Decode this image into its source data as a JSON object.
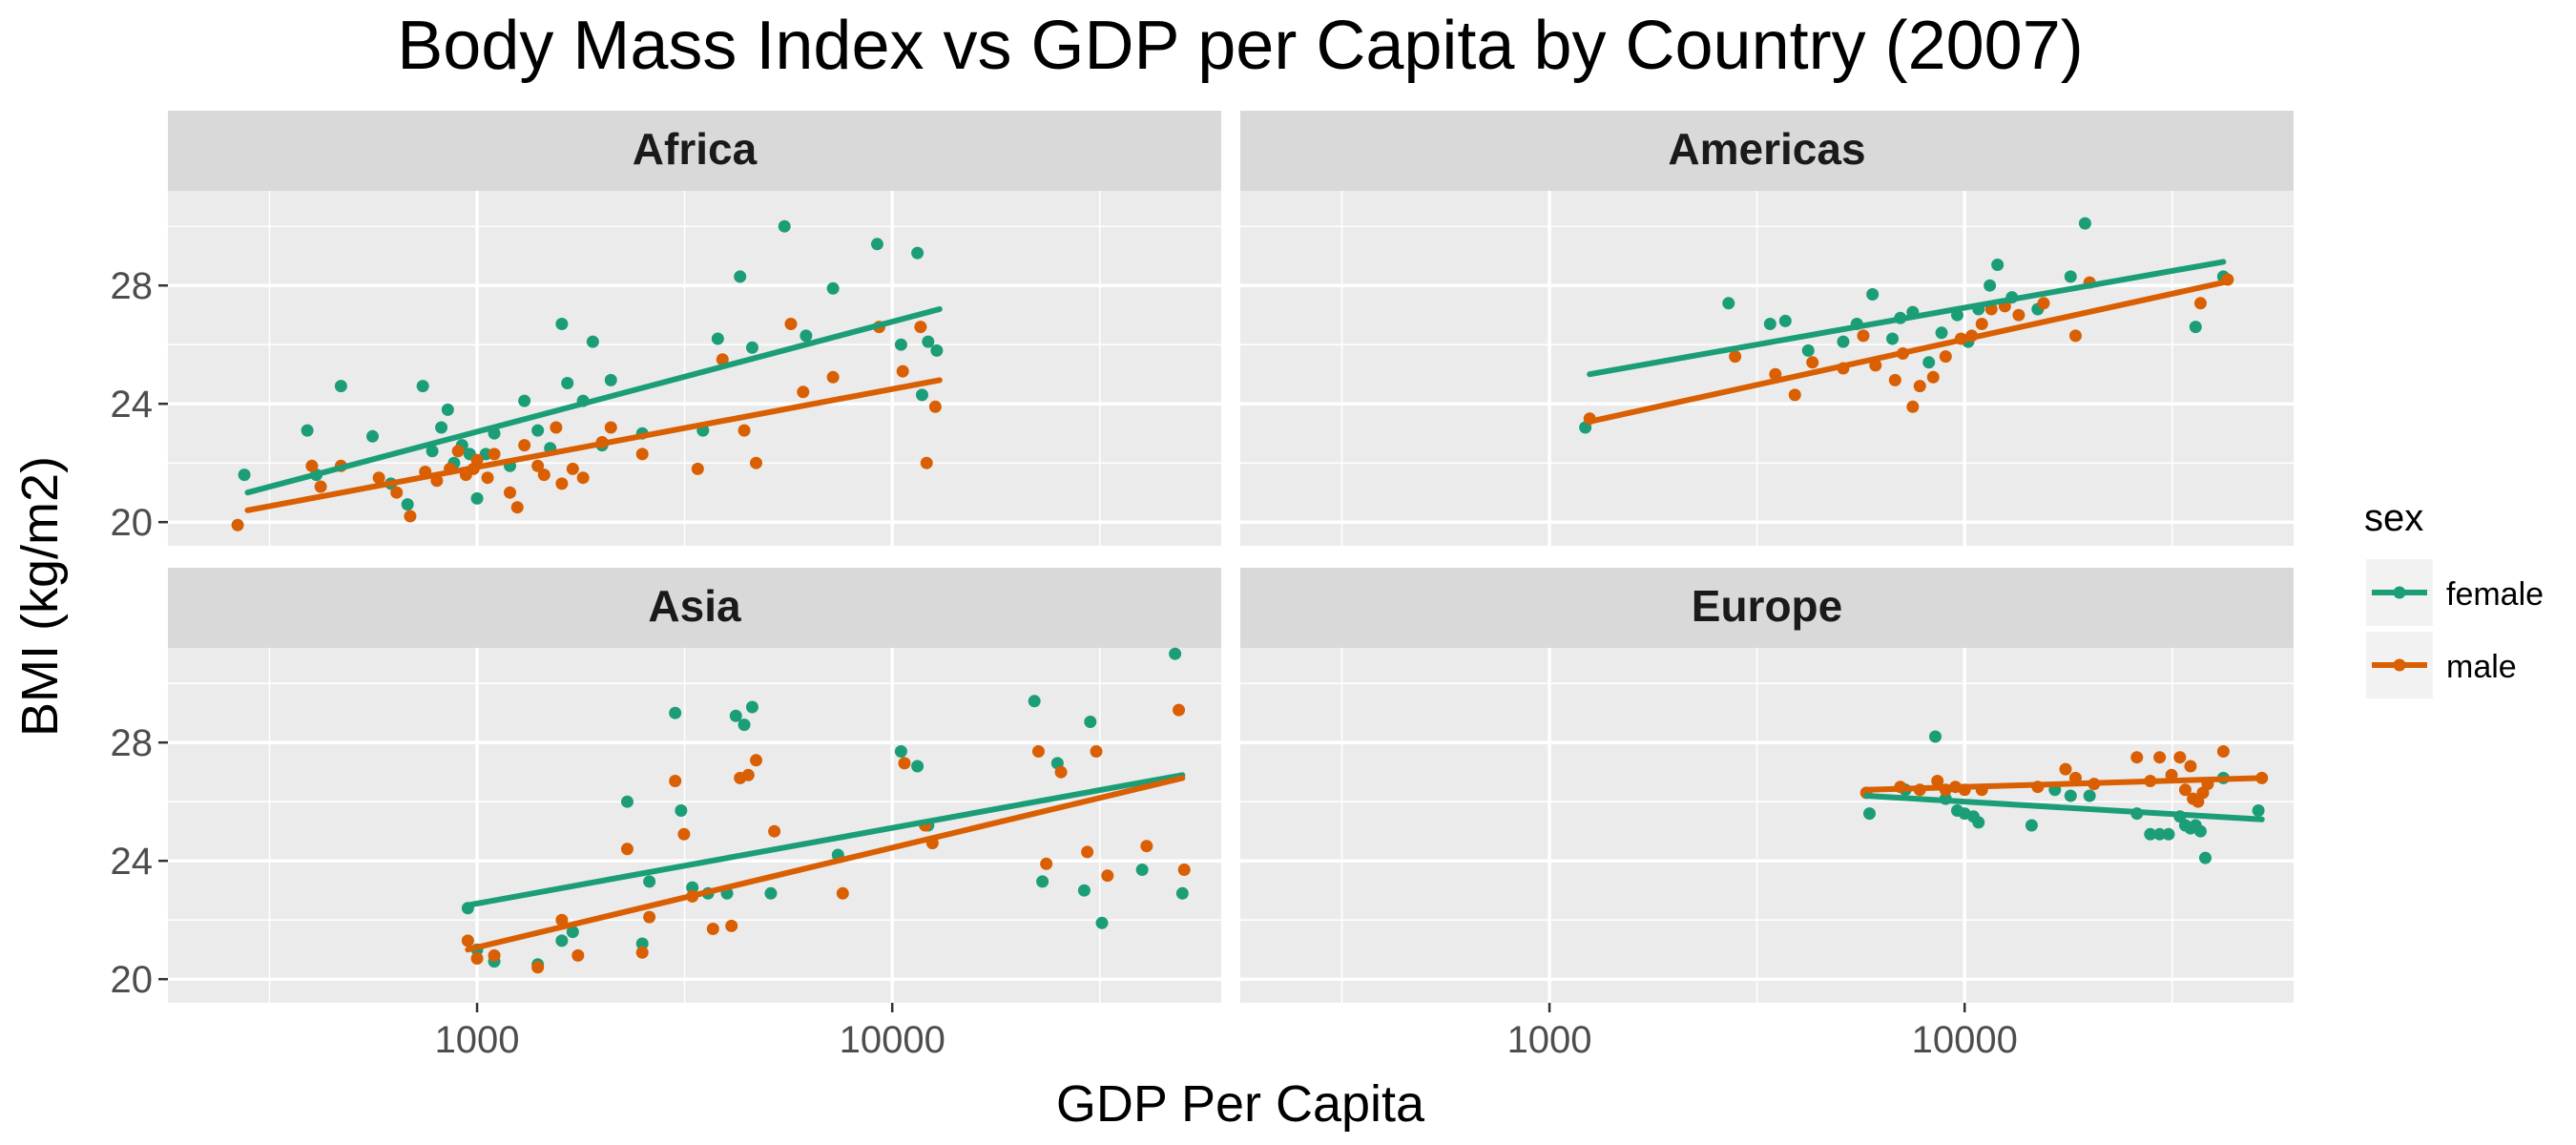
{
  "chart_data": {
    "type": "scatter",
    "title": "Body Mass Index vs GDP per Capita by Country (2007)",
    "xlabel": "GDP Per Capita",
    "ylabel": "BMI (kg/m2)",
    "x_scale": "log10",
    "xlim": [
      180,
      62000
    ],
    "ylim": [
      19.2,
      31.2
    ],
    "x_ticks": [
      1000,
      10000
    ],
    "x_tick_labels": [
      "1000",
      "10000"
    ],
    "y_ticks": [
      20,
      24,
      28
    ],
    "y_tick_labels": [
      "20",
      "24",
      "28"
    ],
    "grid": true,
    "legend": {
      "title": "sex",
      "placement": "right",
      "entries": [
        {
          "label": "female",
          "color": "#1b9e77"
        },
        {
          "label": "male",
          "color": "#d95f02"
        }
      ]
    },
    "panels": [
      {
        "name": "Africa",
        "fits": {
          "female": {
            "x": [
              280,
              13000
            ],
            "y": [
              21.0,
              27.2
            ]
          },
          "male": {
            "x": [
              280,
              13000
            ],
            "y": [
              20.4,
              24.8
            ]
          }
        },
        "female": [
          [
            275,
            21.6
          ],
          [
            390,
            23.1
          ],
          [
            410,
            21.6
          ],
          [
            470,
            24.6
          ],
          [
            560,
            22.9
          ],
          [
            620,
            21.3
          ],
          [
            680,
            20.6
          ],
          [
            740,
            24.6
          ],
          [
            780,
            22.4
          ],
          [
            820,
            23.2
          ],
          [
            850,
            23.8
          ],
          [
            880,
            22.0
          ],
          [
            920,
            22.6
          ],
          [
            960,
            22.3
          ],
          [
            1000,
            20.8
          ],
          [
            1050,
            22.3
          ],
          [
            1100,
            23.0
          ],
          [
            1200,
            21.9
          ],
          [
            1300,
            24.1
          ],
          [
            1400,
            23.1
          ],
          [
            1500,
            22.5
          ],
          [
            1600,
            26.7
          ],
          [
            1650,
            24.7
          ],
          [
            1800,
            24.1
          ],
          [
            1900,
            26.1
          ],
          [
            2000,
            22.6
          ],
          [
            2100,
            24.8
          ],
          [
            2500,
            23.0
          ],
          [
            3500,
            23.1
          ],
          [
            3800,
            26.2
          ],
          [
            4300,
            28.3
          ],
          [
            4600,
            25.9
          ],
          [
            5500,
            30.0
          ],
          [
            6200,
            26.3
          ],
          [
            7200,
            27.9
          ],
          [
            9200,
            29.4
          ],
          [
            10500,
            26.0
          ],
          [
            11500,
            29.1
          ],
          [
            11800,
            24.3
          ],
          [
            12200,
            26.1
          ],
          [
            12800,
            25.8
          ]
        ],
        "male": [
          [
            265,
            19.9
          ],
          [
            400,
            21.9
          ],
          [
            420,
            21.2
          ],
          [
            470,
            21.9
          ],
          [
            580,
            21.5
          ],
          [
            640,
            21.0
          ],
          [
            690,
            20.2
          ],
          [
            750,
            21.7
          ],
          [
            800,
            21.4
          ],
          [
            860,
            21.8
          ],
          [
            900,
            22.4
          ],
          [
            940,
            21.6
          ],
          [
            980,
            21.8
          ],
          [
            1000,
            22.1
          ],
          [
            1060,
            21.5
          ],
          [
            1100,
            22.3
          ],
          [
            1200,
            21.0
          ],
          [
            1250,
            20.5
          ],
          [
            1300,
            22.6
          ],
          [
            1400,
            21.9
          ],
          [
            1450,
            21.6
          ],
          [
            1550,
            23.2
          ],
          [
            1600,
            21.3
          ],
          [
            1700,
            21.8
          ],
          [
            1800,
            21.5
          ],
          [
            2000,
            22.7
          ],
          [
            2100,
            23.2
          ],
          [
            2500,
            22.3
          ],
          [
            3400,
            21.8
          ],
          [
            3900,
            25.5
          ],
          [
            4400,
            23.1
          ],
          [
            4700,
            22.0
          ],
          [
            5700,
            26.7
          ],
          [
            6100,
            24.4
          ],
          [
            7200,
            24.9
          ],
          [
            9300,
            26.6
          ],
          [
            10600,
            25.1
          ],
          [
            11700,
            26.6
          ],
          [
            12100,
            22.0
          ],
          [
            12700,
            23.9
          ]
        ]
      },
      {
        "name": "Americas",
        "fits": {
          "female": {
            "x": [
              1250,
              42000
            ],
            "y": [
              25.0,
              28.8
            ]
          },
          "male": {
            "x": [
              1250,
              42000
            ],
            "y": [
              23.4,
              28.1
            ]
          }
        },
        "female": [
          [
            1220,
            23.2
          ],
          [
            2700,
            27.4
          ],
          [
            3400,
            26.7
          ],
          [
            3700,
            26.8
          ],
          [
            4200,
            25.8
          ],
          [
            5100,
            26.1
          ],
          [
            5500,
            26.7
          ],
          [
            6000,
            27.7
          ],
          [
            6700,
            26.2
          ],
          [
            7000,
            26.9
          ],
          [
            7500,
            27.1
          ],
          [
            8200,
            25.4
          ],
          [
            8800,
            26.4
          ],
          [
            9600,
            27.0
          ],
          [
            10200,
            26.1
          ],
          [
            10800,
            27.2
          ],
          [
            11500,
            28.0
          ],
          [
            12000,
            28.7
          ],
          [
            13000,
            27.6
          ],
          [
            15000,
            27.2
          ],
          [
            18000,
            28.3
          ],
          [
            19500,
            30.1
          ],
          [
            36000,
            26.6
          ],
          [
            42000,
            28.3
          ]
        ],
        "male": [
          [
            1250,
            23.5
          ],
          [
            2800,
            25.6
          ],
          [
            3500,
            25.0
          ],
          [
            3900,
            24.3
          ],
          [
            4300,
            25.4
          ],
          [
            5100,
            25.2
          ],
          [
            5700,
            26.3
          ],
          [
            6100,
            25.3
          ],
          [
            6800,
            24.8
          ],
          [
            7100,
            25.7
          ],
          [
            7500,
            23.9
          ],
          [
            7800,
            24.6
          ],
          [
            8400,
            24.9
          ],
          [
            9000,
            25.6
          ],
          [
            9800,
            26.2
          ],
          [
            10400,
            26.3
          ],
          [
            11000,
            26.7
          ],
          [
            11600,
            27.2
          ],
          [
            12500,
            27.3
          ],
          [
            13500,
            27.0
          ],
          [
            15500,
            27.4
          ],
          [
            18500,
            26.3
          ],
          [
            20000,
            28.1
          ],
          [
            37000,
            27.4
          ],
          [
            43000,
            28.2
          ]
        ]
      },
      {
        "name": "Asia",
        "fits": {
          "female": {
            "x": [
              950,
              50000
            ],
            "y": [
              22.5,
              26.9
            ]
          },
          "male": {
            "x": [
              950,
              50000
            ],
            "y": [
              21.0,
              26.8
            ]
          }
        },
        "female": [
          [
            950,
            22.4
          ],
          [
            1000,
            21.0
          ],
          [
            1100,
            20.6
          ],
          [
            1400,
            20.5
          ],
          [
            1600,
            21.3
          ],
          [
            1700,
            21.6
          ],
          [
            2300,
            26.0
          ],
          [
            2500,
            21.2
          ],
          [
            2600,
            23.3
          ],
          [
            3000,
            29.0
          ],
          [
            3100,
            25.7
          ],
          [
            3300,
            23.1
          ],
          [
            3600,
            22.9
          ],
          [
            4000,
            22.9
          ],
          [
            4200,
            28.9
          ],
          [
            4400,
            28.6
          ],
          [
            4600,
            29.2
          ],
          [
            5100,
            22.9
          ],
          [
            7400,
            24.2
          ],
          [
            10500,
            27.7
          ],
          [
            11500,
            27.2
          ],
          [
            12200,
            25.2
          ],
          [
            22000,
            29.4
          ],
          [
            23000,
            23.3
          ],
          [
            25000,
            27.3
          ],
          [
            29000,
            23.0
          ],
          [
            30000,
            28.7
          ],
          [
            32000,
            21.9
          ],
          [
            40000,
            23.7
          ],
          [
            48000,
            31.0
          ],
          [
            50000,
            22.9
          ]
        ],
        "male": [
          [
            950,
            21.3
          ],
          [
            1000,
            20.7
          ],
          [
            1100,
            20.8
          ],
          [
            1400,
            20.4
          ],
          [
            1600,
            22.0
          ],
          [
            1750,
            20.8
          ],
          [
            2300,
            24.4
          ],
          [
            2500,
            20.9
          ],
          [
            2600,
            22.1
          ],
          [
            3000,
            26.7
          ],
          [
            3150,
            24.9
          ],
          [
            3300,
            22.8
          ],
          [
            3700,
            21.7
          ],
          [
            4100,
            21.8
          ],
          [
            4300,
            26.8
          ],
          [
            4500,
            26.9
          ],
          [
            4700,
            27.4
          ],
          [
            5200,
            25.0
          ],
          [
            7600,
            22.9
          ],
          [
            10700,
            27.3
          ],
          [
            12000,
            25.2
          ],
          [
            12500,
            24.6
          ],
          [
            22500,
            27.7
          ],
          [
            23500,
            23.9
          ],
          [
            25500,
            27.0
          ],
          [
            29500,
            24.3
          ],
          [
            31000,
            27.7
          ],
          [
            33000,
            23.5
          ],
          [
            41000,
            24.5
          ],
          [
            49000,
            29.1
          ],
          [
            50500,
            23.7
          ]
        ]
      },
      {
        "name": "Europe",
        "fits": {
          "female": {
            "x": [
              5800,
              52000
            ],
            "y": [
              26.2,
              25.4
            ]
          },
          "male": {
            "x": [
              5800,
              52000
            ],
            "y": [
              26.4,
              26.8
            ]
          }
        },
        "female": [
          [
            5900,
            25.6
          ],
          [
            7200,
            26.4
          ],
          [
            8500,
            28.2
          ],
          [
            9000,
            26.1
          ],
          [
            9600,
            25.7
          ],
          [
            10000,
            25.6
          ],
          [
            10500,
            25.5
          ],
          [
            10800,
            25.3
          ],
          [
            14500,
            25.2
          ],
          [
            16500,
            26.4
          ],
          [
            18000,
            26.2
          ],
          [
            20000,
            26.2
          ],
          [
            26000,
            25.6
          ],
          [
            28000,
            24.9
          ],
          [
            29500,
            24.9
          ],
          [
            31000,
            24.9
          ],
          [
            33000,
            25.5
          ],
          [
            34000,
            25.2
          ],
          [
            35000,
            25.1
          ],
          [
            36000,
            25.2
          ],
          [
            37000,
            25.0
          ],
          [
            38000,
            24.1
          ],
          [
            42000,
            26.8
          ],
          [
            51000,
            25.7
          ]
        ],
        "male": [
          [
            5800,
            26.3
          ],
          [
            7000,
            26.5
          ],
          [
            7800,
            26.4
          ],
          [
            8600,
            26.7
          ],
          [
            9000,
            26.4
          ],
          [
            9500,
            26.5
          ],
          [
            10000,
            26.4
          ],
          [
            11000,
            26.4
          ],
          [
            15000,
            26.5
          ],
          [
            17500,
            27.1
          ],
          [
            18500,
            26.8
          ],
          [
            20500,
            26.6
          ],
          [
            26000,
            27.5
          ],
          [
            28000,
            26.7
          ],
          [
            29500,
            27.5
          ],
          [
            31500,
            26.9
          ],
          [
            33000,
            27.5
          ],
          [
            34000,
            26.4
          ],
          [
            35000,
            27.2
          ],
          [
            35500,
            26.1
          ],
          [
            36500,
            26.0
          ],
          [
            37500,
            26.3
          ],
          [
            38500,
            26.6
          ],
          [
            42000,
            27.7
          ],
          [
            52000,
            26.8
          ]
        ]
      }
    ]
  }
}
